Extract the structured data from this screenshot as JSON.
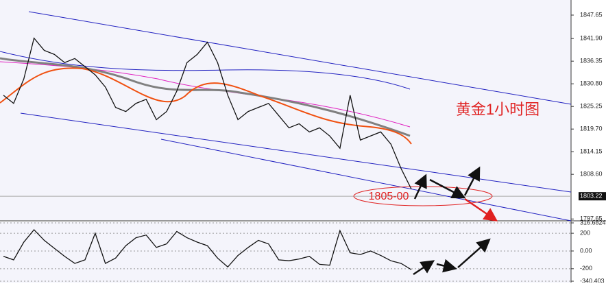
{
  "chart_data": [
    {
      "type": "line",
      "title": "黄金1小时图",
      "annotation": "1805-00",
      "x": [
        0,
        1,
        2,
        3,
        4,
        5,
        6,
        7,
        8,
        9,
        10,
        11,
        12,
        13,
        14,
        15,
        16,
        17,
        18,
        19,
        20,
        21,
        22,
        23,
        24,
        25,
        26,
        27,
        28,
        29,
        30,
        31,
        32,
        33,
        34,
        35,
        36,
        37,
        38,
        39,
        40
      ],
      "series": [
        {
          "color": "#111111",
          "values": [
            1828,
            1826,
            1832,
            1842,
            1839,
            1838,
            1836,
            1837,
            1835,
            1833,
            1830,
            1825,
            1824,
            1826,
            1827,
            1822,
            1824,
            1829,
            1836,
            1838,
            1841,
            1836,
            1828,
            1822,
            1824,
            1825,
            1826,
            1823,
            1820,
            1821,
            1819,
            1820,
            1818,
            1815,
            1828,
            1817,
            1818,
            1819,
            1816,
            1810,
            1805
          ]
        }
      ],
      "ylim": [
        1797.36,
        1851.35
      ],
      "yticks": [
        1847.65,
        {
          "value": 1841.9,
          "label": "1841.90"
        },
        1836.35,
        {
          "value": 1830.8,
          "label": "1830.80"
        },
        1825.25,
        {
          "value": 1819.7,
          "label": "1819.70"
        },
        1814.15,
        {
          "value": 1808.6,
          "label": "1808.60"
        },
        1797.65
      ],
      "last_price": 1803.22
    },
    {
      "type": "line",
      "x": [
        0,
        1,
        2,
        3,
        4,
        5,
        6,
        7,
        8,
        9,
        10,
        11,
        12,
        13,
        14,
        15,
        16,
        17,
        18,
        19,
        20,
        21,
        22,
        23,
        24,
        25,
        26,
        27,
        28,
        29,
        30,
        31,
        32,
        33,
        34,
        35,
        36,
        37,
        38,
        39,
        40
      ],
      "series": [
        {
          "color": "#111111",
          "values": [
            -60,
            -100,
            100,
            240,
            120,
            30,
            -60,
            -140,
            -100,
            200,
            -140,
            -80,
            60,
            150,
            180,
            40,
            80,
            220,
            150,
            100,
            60,
            -80,
            -180,
            -50,
            40,
            120,
            80,
            -100,
            -110,
            -90,
            -60,
            -150,
            -160,
            230,
            -20,
            -40,
            0,
            -50,
            -110,
            -140,
            -210
          ]
        }
      ],
      "ylim": [
        -340.403,
        316.6824
      ],
      "yticks": [
        316.6824,
        200,
        {
          "value": 0,
          "label": "0.00"
        },
        -200,
        -340.403
      ]
    }
  ]
}
